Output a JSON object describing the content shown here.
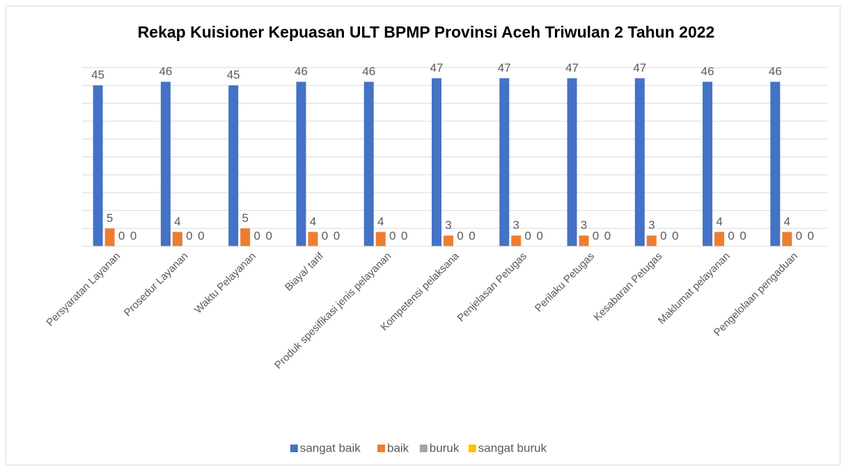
{
  "chart_data": {
    "type": "bar",
    "title": "Rekap Kuisioner Kepuasan ULT BPMP Provinsi Aceh Triwulan 2 Tahun 2022",
    "categories": [
      "Persyaratan Layanan",
      "Prosedur Layanan",
      "Waktu Pelayanan",
      "Biaya/ tarif",
      "Produk spesifikasi jenis pelayanan",
      "Kompetensi pelaksana",
      "Penjelasan Petugas",
      "Perilaku Petugas",
      "Kesabaran Petugas",
      "Maklumat pelayanan",
      "Pengelolaan pengaduan"
    ],
    "series": [
      {
        "name": "sangat baik",
        "color": "#4472c4",
        "values": [
          45,
          46,
          45,
          46,
          46,
          47,
          47,
          47,
          47,
          46,
          46
        ]
      },
      {
        "name": "baik",
        "color": "#ed7d31",
        "values": [
          5,
          4,
          5,
          4,
          4,
          3,
          3,
          3,
          3,
          4,
          4
        ]
      },
      {
        "name": "buruk",
        "color": "#a5a5a5",
        "values": [
          0,
          0,
          0,
          0,
          0,
          0,
          0,
          0,
          0,
          0,
          0
        ]
      },
      {
        "name": "sangat buruk",
        "color": "#ffc000",
        "values": [
          0,
          0,
          0,
          0,
          0,
          0,
          0,
          0,
          0,
          0,
          0
        ]
      }
    ],
    "ylim": [
      0,
      50
    ],
    "yticks": [
      0,
      5,
      10,
      15,
      20,
      25,
      30,
      35,
      40,
      45,
      50
    ],
    "grid": true,
    "legend": "bottom"
  }
}
